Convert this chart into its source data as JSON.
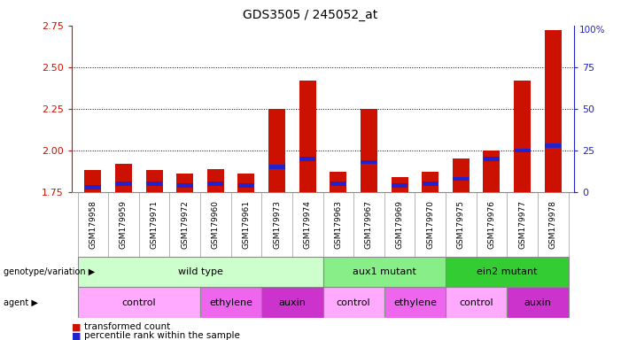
{
  "title": "GDS3505 / 245052_at",
  "samples": [
    "GSM179958",
    "GSM179959",
    "GSM179971",
    "GSM179972",
    "GSM179960",
    "GSM179961",
    "GSM179973",
    "GSM179974",
    "GSM179963",
    "GSM179967",
    "GSM179969",
    "GSM179970",
    "GSM179975",
    "GSM179976",
    "GSM179977",
    "GSM179978"
  ],
  "transformed_count": [
    1.88,
    1.92,
    1.88,
    1.86,
    1.89,
    1.86,
    2.25,
    2.42,
    1.87,
    2.25,
    1.84,
    1.87,
    1.95,
    2.0,
    2.42,
    2.72
  ],
  "percentile_rank": [
    3,
    5,
    5,
    4,
    5,
    4,
    15,
    20,
    5,
    18,
    4,
    5,
    8,
    20,
    25,
    28
  ],
  "ylim_left": [
    1.75,
    2.75
  ],
  "ylim_right": [
    0,
    100
  ],
  "yticks_left": [
    1.75,
    2.0,
    2.25,
    2.5,
    2.75
  ],
  "yticks_right": [
    0,
    25,
    50,
    75
  ],
  "bar_color": "#cc1100",
  "marker_color": "#2222cc",
  "bar_width": 0.55,
  "groups": [
    {
      "label": "wild type",
      "start": 0,
      "end": 7,
      "color": "#ccffcc"
    },
    {
      "label": "aux1 mutant",
      "start": 8,
      "end": 11,
      "color": "#88ee88"
    },
    {
      "label": "ein2 mutant",
      "start": 12,
      "end": 15,
      "color": "#33cc33"
    }
  ],
  "agents": [
    {
      "label": "control",
      "start": 0,
      "end": 3,
      "color": "#ffaaff"
    },
    {
      "label": "ethylene",
      "start": 4,
      "end": 5,
      "color": "#ee66ee"
    },
    {
      "label": "auxin",
      "start": 6,
      "end": 7,
      "color": "#cc33cc"
    },
    {
      "label": "control",
      "start": 8,
      "end": 9,
      "color": "#ffaaff"
    },
    {
      "label": "ethylene",
      "start": 10,
      "end": 11,
      "color": "#ee66ee"
    },
    {
      "label": "control",
      "start": 12,
      "end": 13,
      "color": "#ffaaff"
    },
    {
      "label": "auxin",
      "start": 14,
      "end": 15,
      "color": "#cc33cc"
    }
  ],
  "background_color": "#ffffff",
  "left_tick_color": "#cc1100",
  "right_tick_color": "#2222cc",
  "sample_bg_color": "#cccccc",
  "sample_divider_color": "#999999"
}
